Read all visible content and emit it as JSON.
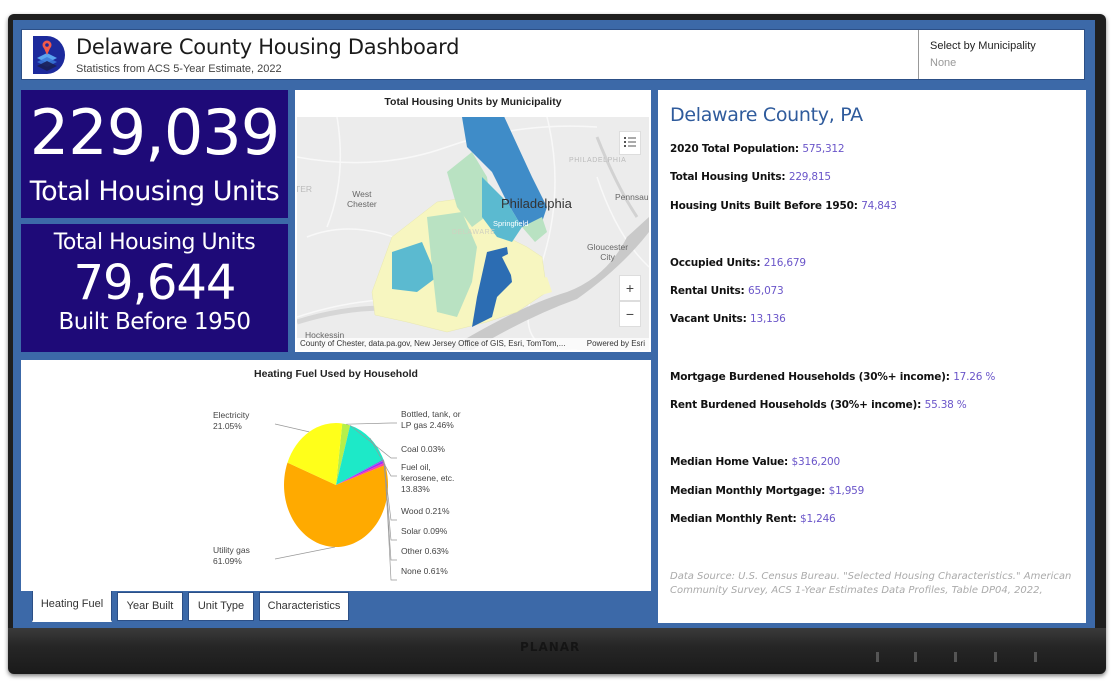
{
  "header": {
    "title": "Delaware County Housing Dashboard",
    "subtitle": "Statistics from ACS 5-Year Estimate, 2022",
    "logo_icon": "map-pin-layers-icon",
    "selector": {
      "label": "Select by Municipality",
      "value": "None"
    }
  },
  "kpis": {
    "total_units": {
      "value": "229,039",
      "caption": "Total Housing Units"
    },
    "built_before_1950": {
      "top": "Total Housing Units",
      "value": "79,644",
      "caption": "Built Before 1950"
    }
  },
  "map": {
    "title": "Total Housing Units by Municipality",
    "labels": {
      "west_chester": "West\nChester",
      "philadelphia": "Philadelphia",
      "philadelphia_faint": "PHILADELPHIA",
      "pennsauken": "Pennsau",
      "gloucester": "Gloucester\nCity",
      "springfield": "Springfield",
      "delaware": "DELAWARE",
      "hockessin": "Hockessin",
      "ter": "TER"
    },
    "controls": {
      "legend_icon": "list-legend-icon",
      "zoom_in": "+",
      "zoom_out": "−"
    },
    "attribution": "County of Chester, data.pa.gov, New Jersey Office of GIS, Esri, TomTom,...",
    "powered_by": "Powered by Esri",
    "colors": {
      "very_low": "#f7f6c0",
      "low": "#b9e2c2",
      "medium": "#5bbad0",
      "high": "#3f8cc8",
      "highest": "#2c6db3"
    }
  },
  "chart_data": {
    "type": "pie",
    "title": "Heating Fuel Used by Household",
    "slices": [
      {
        "name": "Utility gas",
        "label": "Utility gas\n61.09%",
        "value": 61.09,
        "color": "#ffaa00"
      },
      {
        "name": "Electricity",
        "label": "Electricity\n21.05%",
        "value": 21.05,
        "color": "#ffff1a"
      },
      {
        "name": "Bottled, tank, or LP gas",
        "label": "Bottled, tank, or\nLP gas 2.46%",
        "value": 2.46,
        "color": "#b6f04a"
      },
      {
        "name": "Coal",
        "label": "Coal 0.03%",
        "value": 0.03,
        "color": "#7a7a7a"
      },
      {
        "name": "Fuel oil, kerosene, etc.",
        "label": "Fuel oil,\nkerosene, etc.\n13.83%",
        "value": 13.83,
        "color": "#1de9c8"
      },
      {
        "name": "Wood",
        "label": "Wood 0.21%",
        "value": 0.21,
        "color": "#3a7bd5"
      },
      {
        "name": "Solar",
        "label": "Solar 0.09%",
        "value": 0.09,
        "color": "#e02fe0"
      },
      {
        "name": "Other",
        "label": "Other 0.63%",
        "value": 0.63,
        "color": "#9b30ff"
      },
      {
        "name": "None",
        "label": "None 0.61%",
        "value": 0.61,
        "color": "#ff3da6"
      }
    ]
  },
  "tabs": [
    {
      "label": "Heating Fuel",
      "active": true
    },
    {
      "label": "Year Built",
      "active": false
    },
    {
      "label": "Unit Type",
      "active": false
    },
    {
      "label": "Characteristics",
      "active": false
    }
  ],
  "info": {
    "title": "Delaware County, PA",
    "groups": [
      [
        {
          "key": "2020 Total Population:",
          "value": "575,312"
        },
        {
          "key": "Total Housing Units:",
          "value": "229,815"
        },
        {
          "key": "Housing Units Built Before 1950:",
          "value": "74,843"
        }
      ],
      [
        {
          "key": "Occupied Units:",
          "value": "216,679"
        },
        {
          "key": "Rental Units:",
          "value": "65,073"
        },
        {
          "key": "Vacant Units:",
          "value": "13,136"
        }
      ],
      [
        {
          "key": "Mortgage Burdened Households (30%+ income):",
          "value": "17.26 %"
        },
        {
          "key": "Rent Burdened Households (30%+ income):",
          "value": "55.38 %"
        }
      ],
      [
        {
          "key": "Median Home Value:",
          "value": "$316,200"
        },
        {
          "key": "Median Monthly Mortgage:",
          "value": "$1,959"
        },
        {
          "key": "Median Monthly Rent:",
          "value": "$1,246"
        }
      ]
    ],
    "source": "Data Source: U.S. Census Bureau. \"Selected Housing Characteristics.\" American Community Survey, ACS 1-Year Estimates Data Profiles, Table DP04, 2022,"
  },
  "device": {
    "brand": "PLANAR"
  }
}
